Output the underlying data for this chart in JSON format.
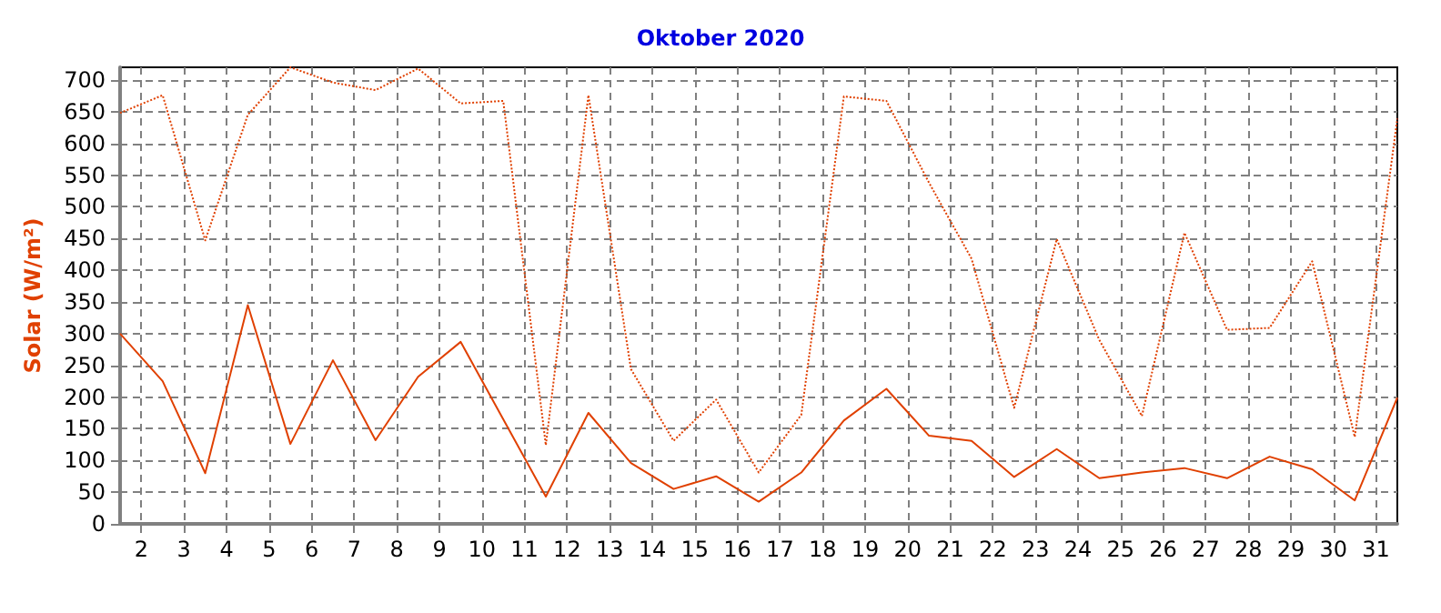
{
  "chart_data": {
    "type": "line",
    "title": "Oktober 2020",
    "ylabel": "Solar (W/m²)",
    "x": [
      1.5,
      2.5,
      3.5,
      4.5,
      5.5,
      6.5,
      7.5,
      8.5,
      9.5,
      10.5,
      11.5,
      12.5,
      13.5,
      14.5,
      15.5,
      16.5,
      17.5,
      18.5,
      19.5,
      20.5,
      21.5,
      22.5,
      23.5,
      24.5,
      25.5,
      26.5,
      27.5,
      28.5,
      29.5,
      30.5,
      31.5
    ],
    "series": [
      {
        "color": "#e04000",
        "line_style": "solid",
        "values": [
          300,
          225,
          80,
          345,
          126,
          258,
          132,
          232,
          287,
          165,
          43,
          175,
          96,
          55,
          75,
          35,
          81,
          163,
          213,
          139,
          131,
          74,
          118,
          72,
          81,
          88,
          72,
          106,
          86,
          37,
          199
        ]
      },
      {
        "color": "#e04000",
        "line_style": "dotted",
        "values": [
          648,
          676,
          447,
          645,
          720,
          696,
          684,
          718,
          663,
          667,
          124,
          676,
          244,
          131,
          196,
          81,
          172,
          674,
          667,
          538,
          418,
          183,
          449,
          290,
          170,
          459,
          306,
          309,
          414,
          137,
          639
        ]
      }
    ],
    "xlim": [
      1.5,
      31.5
    ],
    "xticks": [
      2,
      3,
      4,
      5,
      6,
      7,
      8,
      9,
      10,
      11,
      12,
      13,
      14,
      15,
      16,
      17,
      18,
      19,
      20,
      21,
      22,
      23,
      24,
      25,
      26,
      27,
      28,
      29,
      30,
      31
    ],
    "ylim": [
      0,
      720
    ],
    "yticks": [
      0,
      50,
      100,
      150,
      200,
      250,
      300,
      350,
      400,
      450,
      500,
      550,
      600,
      650,
      700
    ],
    "grid": true,
    "marker": "none"
  }
}
